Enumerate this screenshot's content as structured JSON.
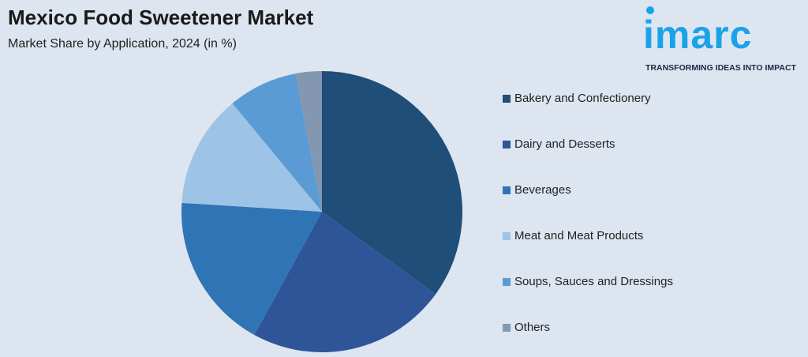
{
  "chart_data": {
    "type": "pie",
    "title": "Mexico Food Sweetener Market",
    "subtitle": "Market Share by Application, 2024 (in %)",
    "categories": [
      "Bakery and Confectionery",
      "Dairy and Desserts",
      "Beverages",
      "Meat and Meat Products",
      "Soups, Sauces and Dressings",
      "Others"
    ],
    "values": [
      35,
      23,
      18,
      13,
      8,
      3
    ],
    "colors": [
      "#1f4e79",
      "#2e5597",
      "#2f75b5",
      "#9dc3e6",
      "#5b9bd5",
      "#8497b0"
    ],
    "legend": "right"
  },
  "logo": {
    "name": "imarc",
    "tagline": "TRANSFORMING IDEAS INTO IMPACT"
  }
}
